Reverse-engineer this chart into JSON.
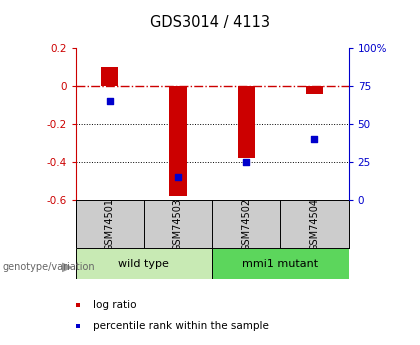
{
  "title": "GDS3014 / 4113",
  "samples": [
    "GSM74501",
    "GSM74503",
    "GSM74502",
    "GSM74504"
  ],
  "log_ratios": [
    0.1,
    -0.58,
    -0.38,
    -0.04
  ],
  "percentile_ranks": [
    65,
    15,
    25,
    40
  ],
  "ylim_left": [
    -0.6,
    0.2
  ],
  "ylim_right": [
    0,
    100
  ],
  "left_yticks": [
    -0.6,
    -0.4,
    -0.2,
    0.0,
    0.2
  ],
  "right_yticks": [
    0,
    25,
    50,
    75,
    100
  ],
  "right_yticklabels": [
    "0",
    "25",
    "50",
    "75",
    "100%"
  ],
  "groups": [
    {
      "label": "wild type",
      "indices": [
        0,
        1
      ],
      "color": "#c8eab4"
    },
    {
      "label": "mmi1 mutant",
      "indices": [
        2,
        3
      ],
      "color": "#5cd65c"
    }
  ],
  "bar_color": "#cc0000",
  "dot_color": "#0000cc",
  "zero_line_color": "#cc0000",
  "grid_color": "#000000",
  "bar_width": 0.25,
  "genotype_label": "genotype/variation",
  "legend_bar_label": "log ratio",
  "legend_dot_label": "percentile rank within the sample",
  "background_color": "#ffffff",
  "plot_bg_color": "#ffffff",
  "sample_bg_color": "#cccccc"
}
